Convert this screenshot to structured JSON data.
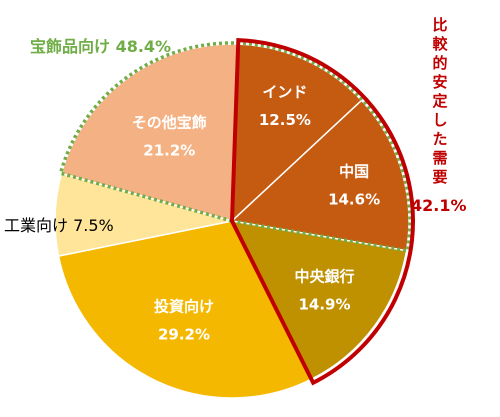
{
  "chart_data": {
    "type": "pie",
    "title": "",
    "slices": [
      {
        "name": "インド",
        "value": 12.5,
        "label": "12.5%",
        "color": "#c55a11"
      },
      {
        "name": "中国",
        "value": 14.6,
        "label": "14.6%",
        "color": "#c55a11"
      },
      {
        "name": "中央銀行",
        "value": 14.9,
        "label": "14.9%",
        "color": "#bf9000"
      },
      {
        "name": "投資向け",
        "value": 29.2,
        "label": "29.2%",
        "color": "#f5b800"
      },
      {
        "name": "工業向け",
        "value": 7.5,
        "label": "7.5%",
        "color": "#ffe599"
      },
      {
        "name": "その他宝飾",
        "value": 21.2,
        "label": "21.2%",
        "color": "#f4b183"
      }
    ],
    "groups": {
      "jewelry": {
        "label": "宝飾品向け 48.4%",
        "color": "#70ad47"
      },
      "stable_demand": {
        "label": "比較的安定した需要",
        "pct": "42.1%",
        "color": "#c00000"
      }
    }
  }
}
